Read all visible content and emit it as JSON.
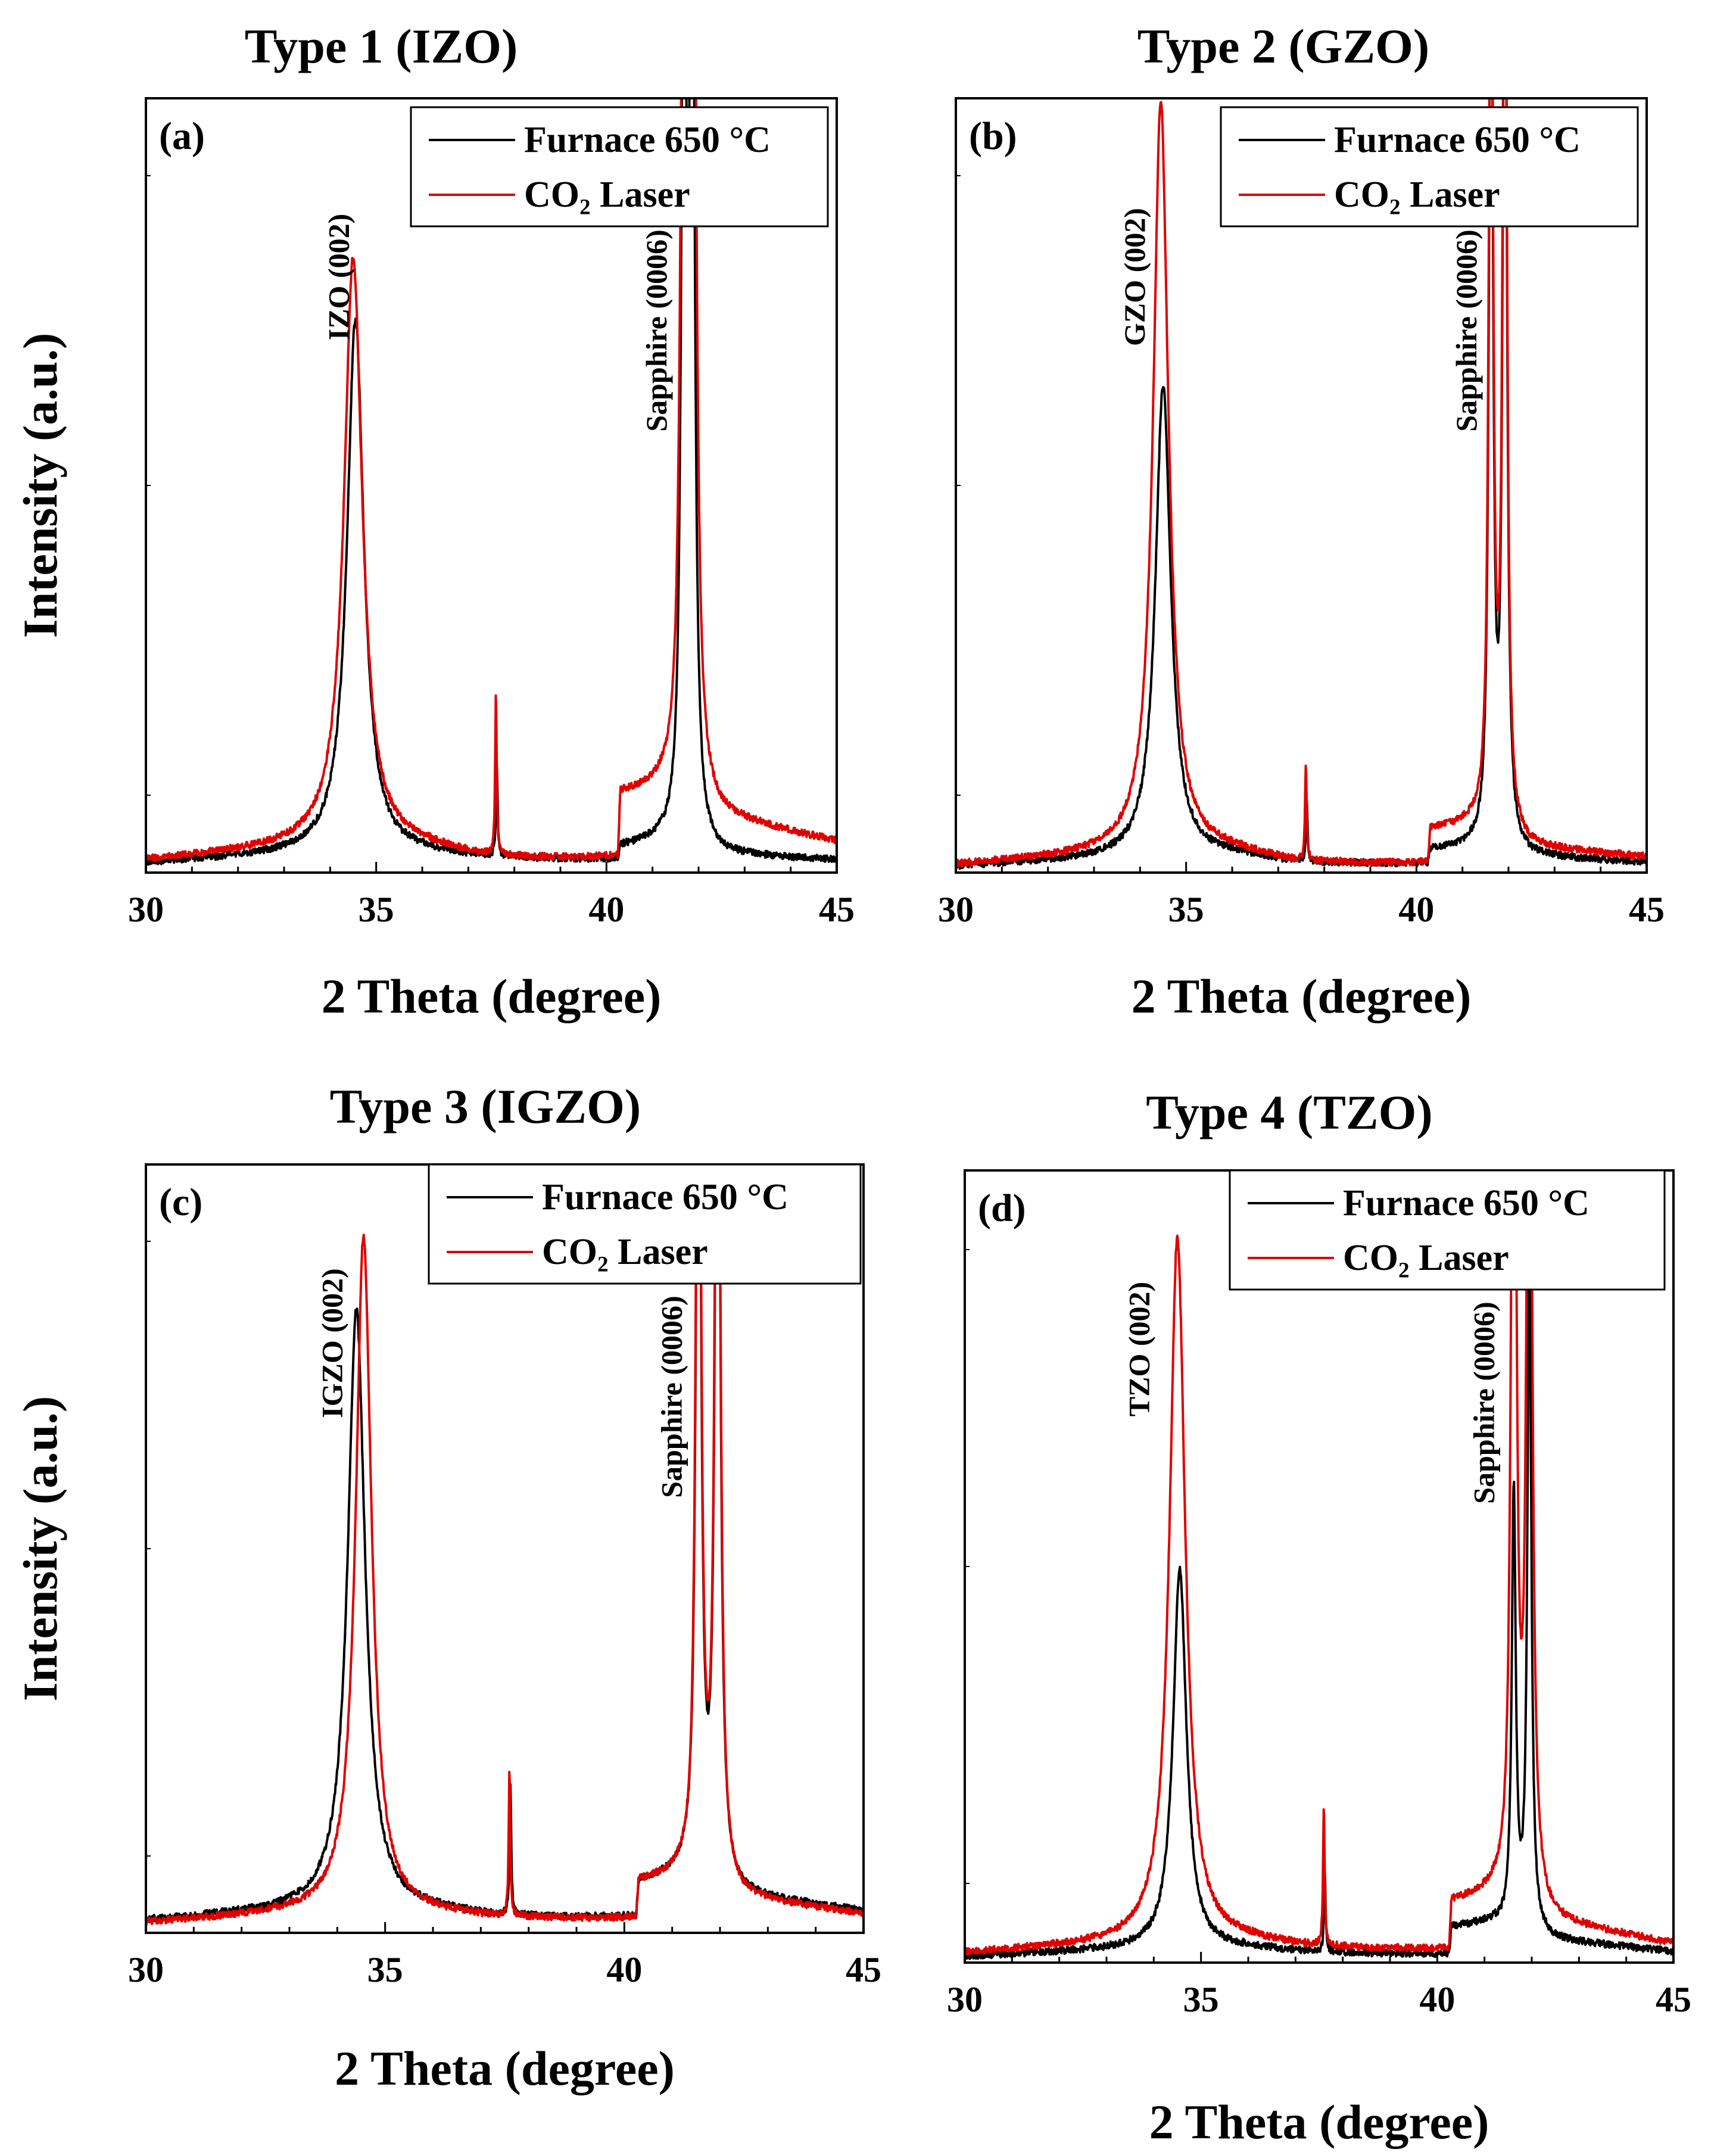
{
  "figure": {
    "y_axis_label": "Intensity (a.u.)"
  },
  "legend": {
    "entries": [
      {
        "label": "Furnace 650 °C",
        "color": "#000000"
      },
      {
        "label": "CO₂ Laser",
        "color": "#e00000"
      }
    ]
  },
  "chart_data": [
    {
      "type": "line",
      "panel": "(a)",
      "title": "Type 1 (IZO)",
      "xlabel": "2 Theta (degree)",
      "ylabel": "Intensity (a.u.)",
      "xlim": [
        30,
        45
      ],
      "ylim": [
        0,
        100
      ],
      "xticks": [
        30,
        35,
        40,
        45
      ],
      "annotations": [
        {
          "text": "IZO (002)",
          "x": 34.4
        },
        {
          "text": "Sapphire (0006)",
          "x": 41.3
        }
      ],
      "series": [
        {
          "name": "Furnace 650 °C",
          "color": "#000000",
          "baseline": [
            [
              30,
              1.2
            ],
            [
              34,
              2.6
            ],
            [
              36,
              2.4
            ],
            [
              37.5,
              1.8
            ],
            [
              40.25,
              1.4
            ],
            [
              40.3,
              3.2
            ],
            [
              41.2,
              3.8
            ],
            [
              42.5,
              2.2
            ],
            [
              45,
              1.6
            ]
          ],
          "peaks": [
            {
              "center": 34.55,
              "height": 69,
              "width": 0.22
            },
            {
              "center": 37.62,
              "height": 12,
              "width": 0.02
            },
            {
              "center": 41.68,
              "height": 130,
              "width": 0.06
            },
            {
              "center": 41.86,
              "height": 140,
              "width": 0.06
            }
          ]
        },
        {
          "name": "CO₂ Laser",
          "color": "#e00000",
          "baseline": [
            [
              30,
              1.6
            ],
            [
              34,
              3.6
            ],
            [
              36,
              3.2
            ],
            [
              37.5,
              1.8
            ],
            [
              40.25,
              1.6
            ],
            [
              40.3,
              10.0
            ],
            [
              41.2,
              10.5
            ],
            [
              42.5,
              7.0
            ],
            [
              45,
              4.0
            ]
          ],
          "peaks": [
            {
              "center": 34.5,
              "height": 76,
              "width": 0.24
            },
            {
              "center": 37.6,
              "height": 21,
              "width": 0.02
            },
            {
              "center": 41.68,
              "height": 140,
              "width": 0.07
            },
            {
              "center": 41.88,
              "height": 150,
              "width": 0.07
            }
          ]
        }
      ]
    },
    {
      "type": "line",
      "panel": "(b)",
      "title": "Type 2 (GZO)",
      "xlabel": "2 Theta (degree)",
      "ylabel": "",
      "xlim": [
        30,
        45
      ],
      "ylim": [
        0,
        100
      ],
      "xticks": [
        30,
        35,
        40,
        45
      ],
      "annotations": [
        {
          "text": "GZO (002)",
          "x": 34.1
        },
        {
          "text": "Sapphire (0006)",
          "x": 41.3
        }
      ],
      "series": [
        {
          "name": "Furnace 650 °C",
          "color": "#000000",
          "baseline": [
            [
              30,
              0.8
            ],
            [
              34,
              2.0
            ],
            [
              36,
              2.2
            ],
            [
              37.5,
              1.2
            ],
            [
              40.25,
              1.0
            ],
            [
              40.3,
              2.8
            ],
            [
              41.2,
              3.2
            ],
            [
              42.5,
              2.0
            ],
            [
              45,
              1.3
            ]
          ],
          "peaks": [
            {
              "center": 34.5,
              "height": 61,
              "width": 0.2
            },
            {
              "center": 37.62,
              "height": 8,
              "width": 0.02
            },
            {
              "center": 41.62,
              "height": 130,
              "width": 0.05
            },
            {
              "center": 41.92,
              "height": 140,
              "width": 0.05
            }
          ]
        },
        {
          "name": "CO₂ Laser",
          "color": "#e00000",
          "baseline": [
            [
              30,
              1.0
            ],
            [
              34,
              2.6
            ],
            [
              36,
              2.6
            ],
            [
              37.5,
              1.2
            ],
            [
              40.25,
              1.0
            ],
            [
              40.3,
              5.5
            ],
            [
              41.2,
              6.0
            ],
            [
              42.5,
              3.2
            ],
            [
              45,
              2.0
            ]
          ],
          "peaks": [
            {
              "center": 34.45,
              "height": 97,
              "width": 0.2
            },
            {
              "center": 37.6,
              "height": 13,
              "width": 0.02
            },
            {
              "center": 41.62,
              "height": 140,
              "width": 0.05
            },
            {
              "center": 41.92,
              "height": 150,
              "width": 0.05
            }
          ]
        }
      ]
    },
    {
      "type": "line",
      "panel": "(c)",
      "title": "Type 3 (IGZO)",
      "xlabel": "2 Theta (degree)",
      "ylabel": "Intensity (a.u.)",
      "xlim": [
        30,
        45
      ],
      "ylim": [
        0,
        100
      ],
      "xticks": [
        30,
        35,
        40,
        45
      ],
      "annotations": [
        {
          "text": "IGZO (002)",
          "x": 34.1
        },
        {
          "text": "Sapphire (0006)",
          "x": 41.2
        }
      ],
      "series": [
        {
          "name": "Furnace 650 °C",
          "color": "#000000",
          "baseline": [
            [
              30,
              1.6
            ],
            [
              34,
              3.2
            ],
            [
              36,
              2.8
            ],
            [
              37.5,
              2.0
            ],
            [
              40.25,
              1.8
            ],
            [
              40.3,
              6.5
            ],
            [
              41.2,
              7.5
            ],
            [
              42.5,
              4.8
            ],
            [
              45,
              2.8
            ]
          ],
          "peaks": [
            {
              "center": 34.4,
              "height": 78,
              "width": 0.22
            },
            {
              "center": 37.62,
              "height": 17,
              "width": 0.02
            },
            {
              "center": 41.55,
              "height": 130,
              "width": 0.06
            },
            {
              "center": 41.95,
              "height": 140,
              "width": 0.06
            }
          ]
        },
        {
          "name": "CO₂ Laser",
          "color": "#e00000",
          "baseline": [
            [
              30,
              1.3
            ],
            [
              34,
              2.8
            ],
            [
              36,
              2.4
            ],
            [
              37.5,
              1.8
            ],
            [
              40.25,
              1.6
            ],
            [
              40.3,
              6.5
            ],
            [
              41.2,
              7.3
            ],
            [
              42.5,
              4.4
            ],
            [
              45,
              2.4
            ]
          ],
          "peaks": [
            {
              "center": 34.55,
              "height": 88,
              "width": 0.2
            },
            {
              "center": 37.6,
              "height": 19,
              "width": 0.02
            },
            {
              "center": 41.55,
              "height": 140,
              "width": 0.06
            },
            {
              "center": 41.95,
              "height": 150,
              "width": 0.06
            }
          ]
        }
      ]
    },
    {
      "type": "line",
      "panel": "(d)",
      "title": "Type 4 (TZO)",
      "xlabel": "2 Theta (degree)",
      "ylabel": "",
      "xlim": [
        30,
        45
      ],
      "ylim": [
        0,
        100
      ],
      "xticks": [
        30,
        35,
        40,
        45
      ],
      "annotations": [
        {
          "text": "TZO (002)",
          "x": 33.9
        },
        {
          "text": "Sapphire (0006)",
          "x": 41.2
        }
      ],
      "series": [
        {
          "name": "Furnace 650 °C",
          "color": "#000000",
          "baseline": [
            [
              30,
              0.8
            ],
            [
              34,
              1.8
            ],
            [
              36,
              1.8
            ],
            [
              37.5,
              1.2
            ],
            [
              40.25,
              1.0
            ],
            [
              40.3,
              4.5
            ],
            [
              41.2,
              5.0
            ],
            [
              42.5,
              2.8
            ],
            [
              45,
              1.4
            ]
          ],
          "peaks": [
            {
              "center": 34.55,
              "height": 48,
              "width": 0.17
            },
            {
              "center": 37.62,
              "height": 10,
              "width": 0.02
            },
            {
              "center": 41.62,
              "height": 55,
              "width": 0.05
            },
            {
              "center": 41.95,
              "height": 85,
              "width": 0.05
            }
          ]
        },
        {
          "name": "CO₂ Laser",
          "color": "#e00000",
          "baseline": [
            [
              30,
              1.2
            ],
            [
              34,
              2.6
            ],
            [
              36,
              2.6
            ],
            [
              37.5,
              1.8
            ],
            [
              40.25,
              1.4
            ],
            [
              40.3,
              7.5
            ],
            [
              41.2,
              8.5
            ],
            [
              42.5,
              5.0
            ],
            [
              45,
              2.4
            ]
          ],
          "peaks": [
            {
              "center": 34.5,
              "height": 89,
              "width": 0.2
            },
            {
              "center": 37.6,
              "height": 18,
              "width": 0.02
            },
            {
              "center": 41.62,
              "height": 140,
              "width": 0.06
            },
            {
              "center": 41.95,
              "height": 150,
              "width": 0.06
            }
          ]
        }
      ]
    }
  ]
}
